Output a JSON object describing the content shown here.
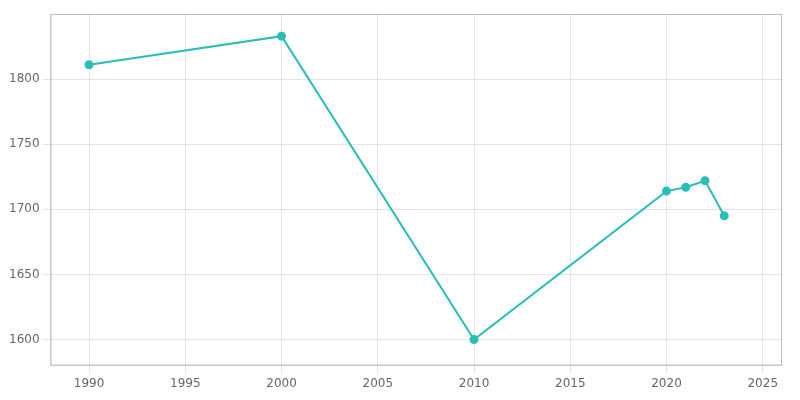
{
  "chart_data": {
    "type": "line",
    "x": [
      1990,
      2000,
      2010,
      2020,
      2021,
      2022,
      2023
    ],
    "values": [
      1811,
      1833,
      1600,
      1714,
      1717,
      1722,
      1695
    ],
    "color": "#29BEB8",
    "xlim": [
      1988,
      2026
    ],
    "ylim": [
      1580,
      1850
    ],
    "xticks": [
      1990,
      1995,
      2000,
      2005,
      2010,
      2015,
      2020,
      2025
    ],
    "yticks": [
      1600,
      1650,
      1700,
      1750,
      1800
    ],
    "grid": true,
    "marker": "circle",
    "line_style": "solid"
  }
}
